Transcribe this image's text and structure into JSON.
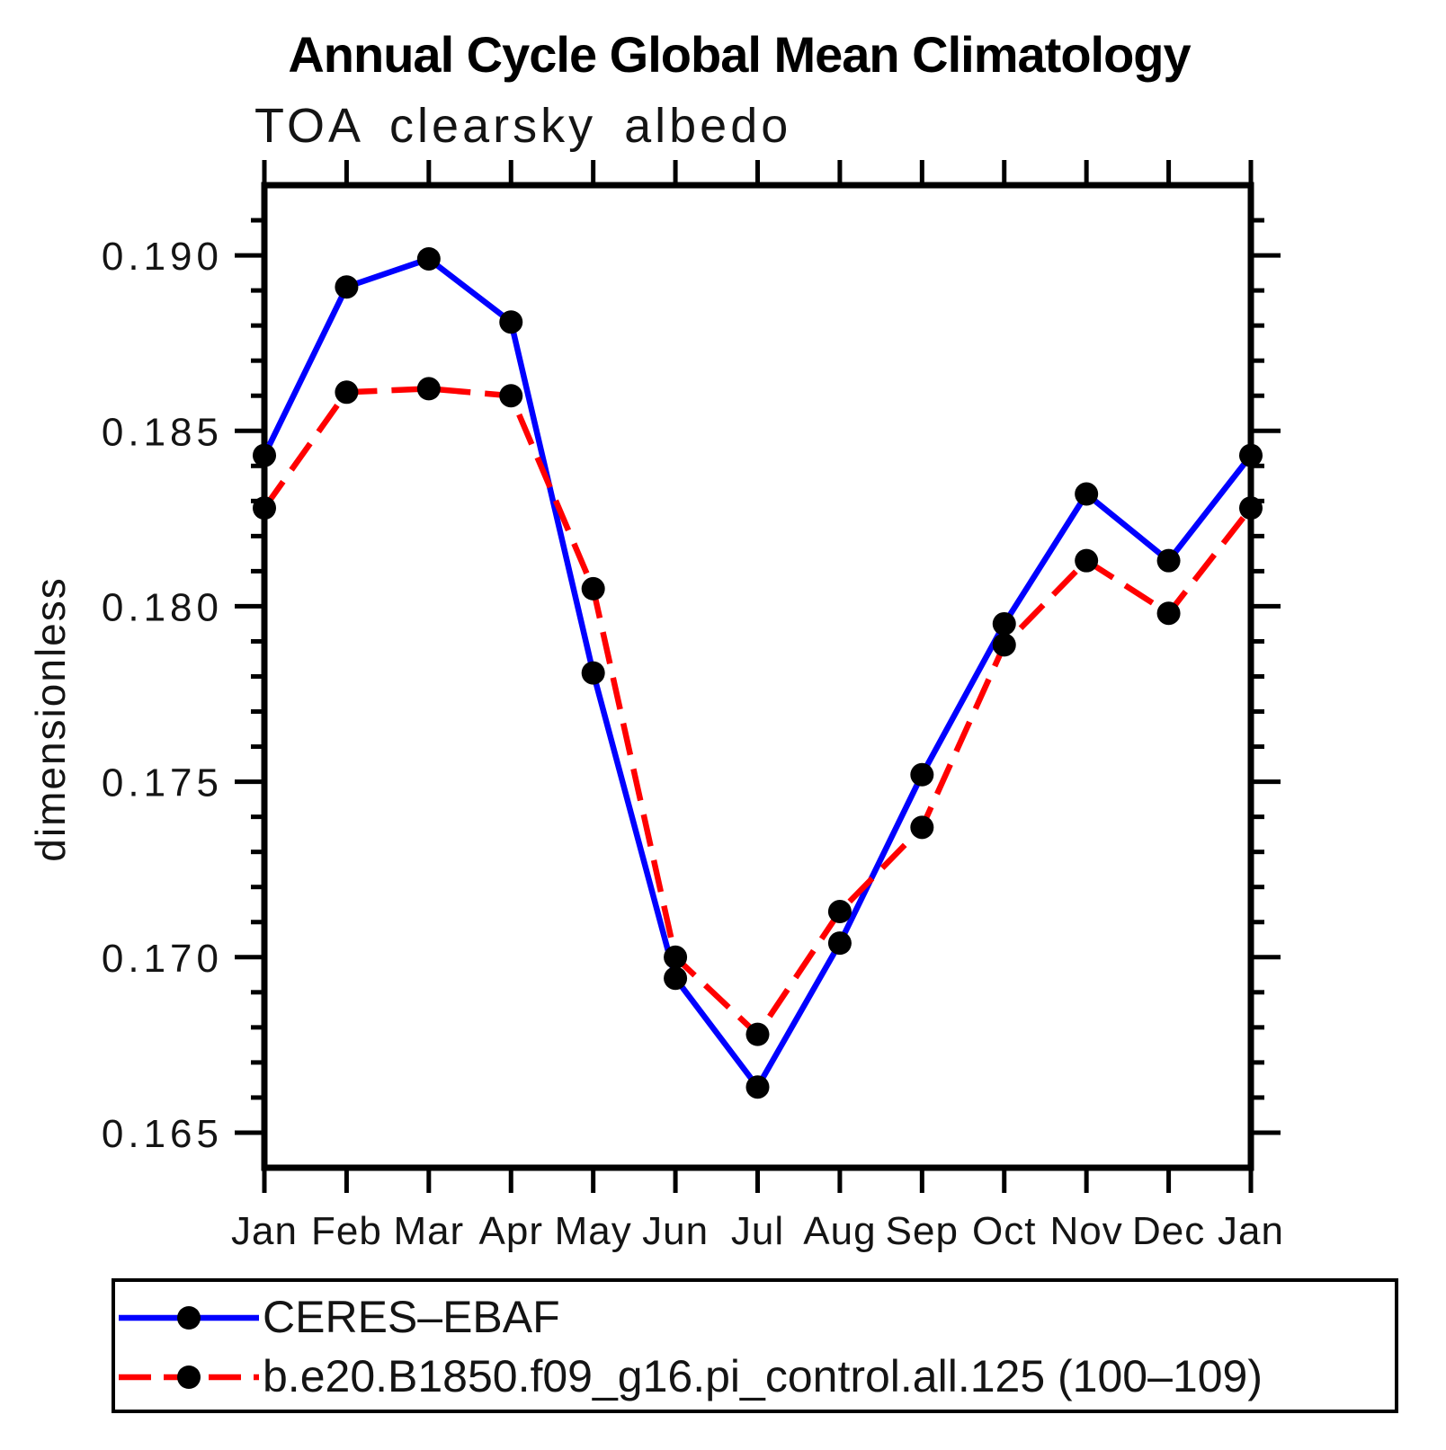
{
  "chart_data": {
    "type": "line",
    "title": "Annual Cycle Global Mean Climatology",
    "subtitle": "TOA clearsky albedo",
    "ylabel": "dimensionless",
    "xlabel": "",
    "categories": [
      "Jan",
      "Feb",
      "Mar",
      "Apr",
      "May",
      "Jun",
      "Jul",
      "Aug",
      "Sep",
      "Oct",
      "Nov",
      "Dec",
      "Jan"
    ],
    "series": [
      {
        "name": "CERES–EBAF",
        "color": "#0000ff",
        "line_style": "solid",
        "marker": "circle",
        "marker_color": "#000000",
        "values": [
          0.1843,
          0.1891,
          0.1899,
          0.1881,
          0.1781,
          0.1694,
          0.1663,
          0.1704,
          0.1752,
          0.1795,
          0.1832,
          0.1813,
          0.1843
        ]
      },
      {
        "name": "b.e20.B1850.f09_g16.pi_control.all.125 (100–109)",
        "color": "#ff0000",
        "line_style": "dashed",
        "marker": "circle",
        "marker_color": "#000000",
        "values": [
          0.1828,
          0.1861,
          0.1862,
          0.186,
          0.1805,
          0.17,
          0.1678,
          0.1713,
          0.1737,
          0.1789,
          0.1813,
          0.1798,
          0.1828
        ]
      }
    ],
    "ylim": [
      0.164,
      0.192
    ],
    "ytick_major": [
      0.165,
      0.17,
      0.175,
      0.18,
      0.185,
      0.19
    ],
    "ytick_labels": [
      "0.165",
      "0.170",
      "0.175",
      "0.180",
      "0.185",
      "0.190"
    ],
    "ytick_minor_step": 0.001,
    "grid": false,
    "frame": "box",
    "legend_position": "bottom-left",
    "axis_color": "#000000",
    "text_color": "#141414"
  }
}
